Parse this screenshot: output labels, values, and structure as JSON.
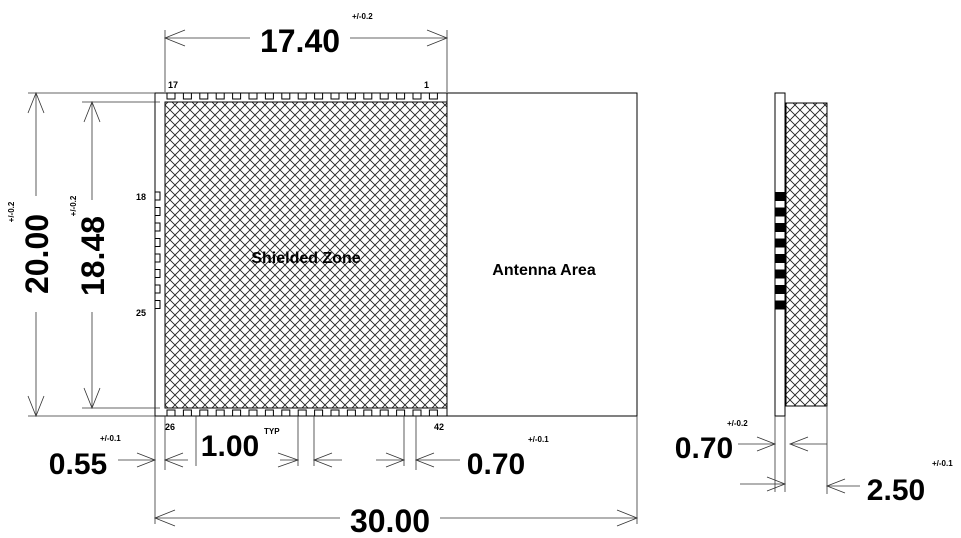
{
  "dimensions": {
    "shield_width": {
      "value": "17.40",
      "tolerance": "+/-0.2"
    },
    "module_height": {
      "value": "20.00",
      "tolerance": "+/-0.2"
    },
    "shield_height": {
      "value": "18.48",
      "tolerance": "+/-0.2"
    },
    "module_length": {
      "value": "30.00"
    },
    "left_offset": {
      "value": "0.55",
      "tolerance": "+/-0.1"
    },
    "pad_pitch": {
      "value": "1.00",
      "qualifier": "TYP"
    },
    "right_pad_offset": {
      "value": "0.70",
      "tolerance": "+/-0.1"
    },
    "pcb_thickness": {
      "value": "0.70",
      "tolerance": "+/-0.2"
    },
    "total_thickness": {
      "value": "2.50",
      "tolerance": "+/-0.1"
    }
  },
  "pins": {
    "top_left": "17",
    "top_right": "1",
    "left_top": "18",
    "left_bottom": "25",
    "bottom_left": "26",
    "bottom_right": "42"
  },
  "labels": {
    "shielded_zone": "Shielded Zone",
    "antenna_area": "Antenna Area"
  }
}
